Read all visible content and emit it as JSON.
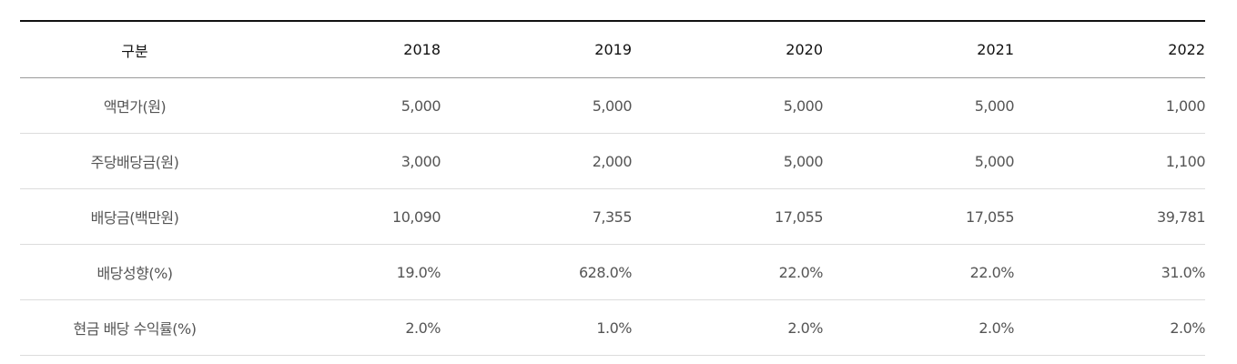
{
  "table": {
    "header": {
      "label": "구분",
      "years": [
        "2018",
        "2019",
        "2020",
        "2021",
        "2022"
      ]
    },
    "rows": [
      {
        "label": "액면가(원)",
        "values": [
          "5,000",
          "5,000",
          "5,000",
          "5,000",
          "1,000"
        ]
      },
      {
        "label": "주당배당금(원)",
        "values": [
          "3,000",
          "2,000",
          "5,000",
          "5,000",
          "1,100"
        ]
      },
      {
        "label": "배당금(백만원)",
        "values": [
          "10,090",
          "7,355",
          "17,055",
          "17,055",
          "39,781"
        ]
      },
      {
        "label": "배당성향(%)",
        "values": [
          "19.0%",
          "628.0%",
          "22.0%",
          "22.0%",
          "31.0%"
        ]
      },
      {
        "label": "현금 배당 수익률(%)",
        "values": [
          "2.0%",
          "1.0%",
          "2.0%",
          "2.0%",
          "2.0%"
        ]
      }
    ]
  }
}
